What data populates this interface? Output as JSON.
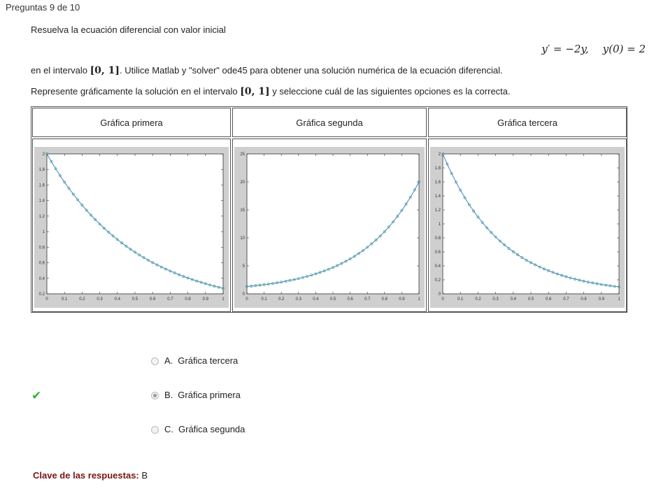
{
  "header": {
    "question_counter": "Preguntas 9 de 10"
  },
  "question": {
    "line1": "Resuelva la ecuación diferencial con valor inicial",
    "equation": {
      "ode": "y′ = −2y,",
      "initial_condition": "y(0) = 2"
    },
    "line2_prefix": "en el intervalo ",
    "line2_interval": "[0, 1]",
    "line2_suffix": ". Utilice Matlab y \"solver\" ode45 para obtener una solución numérica de la ecuación diferencial.",
    "line3_prefix": "Represente gráficamente la solución en el intervalo ",
    "line3_interval": "[0, 1]",
    "line3_suffix": " y seleccione cuál de las siguientes opciones es la correcta."
  },
  "graphs": [
    {
      "title": "Gráfica primera"
    },
    {
      "title": "Gráfica segunda"
    },
    {
      "title": "Gráfica tercera"
    }
  ],
  "chart_data": [
    {
      "type": "line",
      "title": "",
      "x_ticks": [
        "0",
        "0.1",
        "0.2",
        "0.3",
        "0.4",
        "0.5",
        "0.6",
        "0.7",
        "0.8",
        "0.9",
        "1"
      ],
      "y_ticks": [
        "0.2",
        "0.4",
        "0.6",
        "0.8",
        "1",
        "1.2",
        "1.4",
        "1.6",
        "1.8",
        "2"
      ],
      "xlim": [
        0,
        1
      ],
      "ylim": [
        0.2,
        2
      ],
      "series": [
        {
          "function": "2*exp(-2x)",
          "points": 41,
          "markers": "circle"
        }
      ],
      "line_color": "#4a7fc8",
      "marker_color": "#4aa39a"
    },
    {
      "type": "line",
      "title": "",
      "x_ticks": [
        "0",
        "0.1",
        "0.2",
        "0.3",
        "0.4",
        "0.5",
        "0.6",
        "0.7",
        "0.8",
        "0.9",
        "1"
      ],
      "y_ticks": [
        "0",
        "5",
        "10",
        "15",
        "20",
        "25"
      ],
      "xlim": [
        0,
        1
      ],
      "ylim": [
        0,
        25
      ],
      "series": [
        {
          "function": "2*exp(... increasing to ~20 at x=1)",
          "start": 1.3,
          "end": 20,
          "points": 41,
          "markers": "circle"
        }
      ],
      "line_color": "#4a7fc8",
      "marker_color": "#4aa39a"
    },
    {
      "type": "line",
      "title": "",
      "x_ticks": [
        "0",
        "0.1",
        "0.2",
        "0.3",
        "0.4",
        "0.5",
        "0.6",
        "0.7",
        "0.8",
        "0.9",
        "1"
      ],
      "y_ticks": [
        "0",
        "0.2",
        "0.4",
        "0.6",
        "0.8",
        "1",
        "1.2",
        "1.4",
        "1.6",
        "1.8",
        "2"
      ],
      "xlim": [
        0,
        1
      ],
      "ylim": [
        0,
        2
      ],
      "series": [
        {
          "function": "2*exp(-3x)",
          "points": 41,
          "markers": "circle"
        }
      ],
      "line_color": "#4a7fc8",
      "marker_color": "#4aa39a"
    }
  ],
  "options": [
    {
      "letter": "A.",
      "label": "Gráfica tercera",
      "selected": false
    },
    {
      "letter": "B.",
      "label": "Gráfica primera",
      "selected": true
    },
    {
      "letter": "C.",
      "label": "Gráfica segunda",
      "selected": false
    }
  ],
  "feedback": {
    "check_icon": "✔",
    "key_label": "Clave de las respuestas:",
    "key_value": "B"
  }
}
